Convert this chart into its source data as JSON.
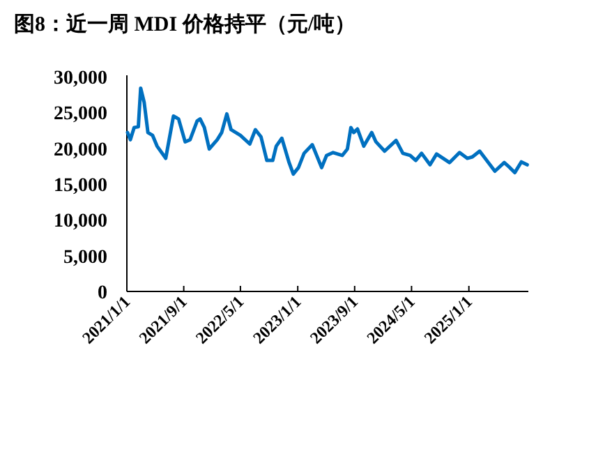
{
  "chart_data": {
    "type": "line",
    "title": "图8：近一周 MDI 价格持平（元/吨）",
    "x": [
      "2021-01-04",
      "2021-01-16",
      "2021-02-01",
      "2021-02-19",
      "2021-03-01",
      "2021-03-16",
      "2021-04-01",
      "2021-04-21",
      "2021-05-10",
      "2021-06-16",
      "2021-07-19",
      "2021-08-10",
      "2021-09-07",
      "2021-09-28",
      "2021-10-28",
      "2021-11-10",
      "2021-11-28",
      "2021-12-19",
      "2022-01-22",
      "2022-02-10",
      "2022-03-04",
      "2022-03-22",
      "2022-05-01",
      "2022-06-10",
      "2022-07-04",
      "2022-07-28",
      "2022-08-22",
      "2022-09-16",
      "2022-10-01",
      "2022-10-25",
      "2022-11-25",
      "2022-12-13",
      "2023-01-04",
      "2023-01-28",
      "2023-03-04",
      "2023-04-13",
      "2023-05-04",
      "2023-06-01",
      "2023-07-10",
      "2023-08-01",
      "2023-08-16",
      "2023-08-28",
      "2023-09-13",
      "2023-10-10",
      "2023-11-13",
      "2023-12-01",
      "2024-01-07",
      "2024-02-25",
      "2024-03-25",
      "2024-04-25",
      "2024-05-19",
      "2024-06-13",
      "2024-07-19",
      "2024-08-16",
      "2024-10-10",
      "2024-11-22",
      "2024-12-25",
      "2025-01-16",
      "2025-02-16",
      "2025-04-22",
      "2025-06-01",
      "2025-06-25",
      "2025-07-16",
      "2025-08-13",
      "2025-09-07"
    ],
    "series": [
      {
        "color": "#0070c0",
        "values": [
          22200,
          21200,
          22900,
          23000,
          28400,
          26400,
          22200,
          21800,
          20300,
          18600,
          24500,
          24100,
          20900,
          21200,
          23800,
          24100,
          22900,
          19900,
          21200,
          22200,
          24800,
          22600,
          21800,
          20600,
          22600,
          21600,
          18300,
          18300,
          20300,
          21400,
          18000,
          16400,
          17300,
          19300,
          20500,
          17300,
          19000,
          19400,
          19000,
          19900,
          22900,
          22200,
          22700,
          20300,
          22200,
          20900,
          19600,
          21100,
          19300,
          19000,
          18300,
          19300,
          17700,
          19200,
          18000,
          19400,
          18600,
          18800,
          19600,
          16800,
          18000,
          17300,
          16600,
          18100,
          17700
        ]
      }
    ],
    "xlim": [
      "2021-01-01",
      "2025-09-12"
    ],
    "xticks": [
      {
        "value": "2021-01-01",
        "label": "2021/1/1"
      },
      {
        "value": "2021-09-01",
        "label": "2021/9/1"
      },
      {
        "value": "2022-05-01",
        "label": "2022/5/1"
      },
      {
        "value": "2023-01-01",
        "label": "2023/1/1"
      },
      {
        "value": "2023-09-01",
        "label": "2023/9/1"
      },
      {
        "value": "2024-05-01",
        "label": "2024/5/1"
      },
      {
        "value": "2025-01-01",
        "label": "2025/1/1"
      }
    ],
    "ylim": [
      0,
      30000
    ],
    "yticks": [
      {
        "value": 0,
        "label": "0"
      },
      {
        "value": 5000,
        "label": "5,000"
      },
      {
        "value": 10000,
        "label": "10,000"
      },
      {
        "value": 15000,
        "label": "15,000"
      },
      {
        "value": 20000,
        "label": "20,000"
      },
      {
        "value": 25000,
        "label": "25,000"
      },
      {
        "value": 30000,
        "label": "30,000"
      }
    ],
    "marker": "none",
    "line_style": "solid"
  }
}
